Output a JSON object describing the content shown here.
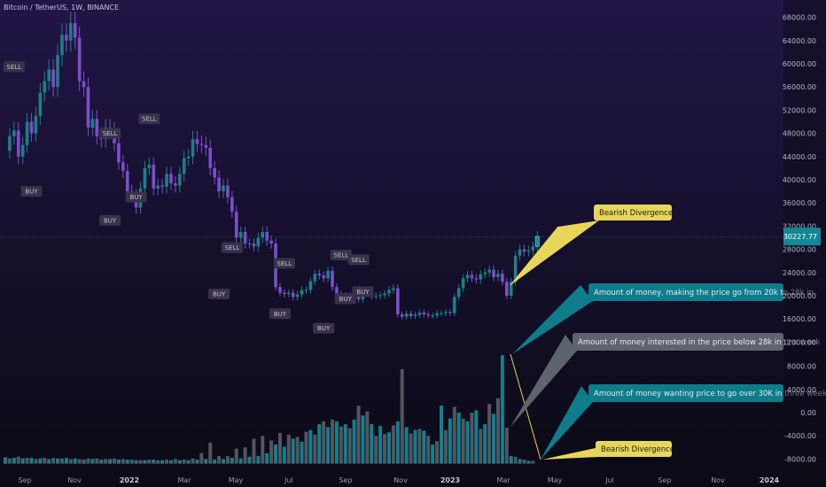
{
  "header": {
    "title": "Bitcoin / TetherUS, 1W, BINANCE"
  },
  "colors": {
    "background_top": "#1f1540",
    "background_bottom": "#0b0a14",
    "up_candle": "#1e7f86",
    "down_candle": "#7b4fc9",
    "vol_teal": "#11808f",
    "vol_gray": "#55555f",
    "callout_teal": "#0e7c8a",
    "callout_gray": "#5e646e",
    "callout_yellow": "#e8d65a",
    "signal_box": "#3a3248",
    "signal_text": "#c5c0d4"
  },
  "chart_data": {
    "type": "candlestick",
    "price_axis": {
      "ticks": [
        "68000.00",
        "64000.00",
        "60000.00",
        "56000.00",
        "52000.00",
        "48000.00",
        "44000.00",
        "40000.00",
        "36000.00",
        "32000.00",
        "28000.00",
        "24000.00",
        "20000.00",
        "16000.00",
        "12000.00"
      ],
      "last_price_label": "30227.77",
      "ylim": [
        11000,
        70000
      ]
    },
    "volume_axis": {
      "ticks": [
        "8000.00",
        "4000.00",
        "0.00",
        "-4000.00",
        "-8000.00"
      ]
    },
    "x_axis": {
      "ticks": [
        {
          "label": "Sep",
          "bold": false
        },
        {
          "label": "Nov",
          "bold": false
        },
        {
          "label": "2022",
          "bold": true
        },
        {
          "label": "Mar",
          "bold": false
        },
        {
          "label": "May",
          "bold": false
        },
        {
          "label": "Jul",
          "bold": false
        },
        {
          "label": "Sep",
          "bold": false
        },
        {
          "label": "Nov",
          "bold": false
        },
        {
          "label": "2023",
          "bold": true
        },
        {
          "label": "Mar",
          "bold": false
        },
        {
          "label": "May",
          "bold": false
        },
        {
          "label": "Jul",
          "bold": false
        },
        {
          "label": "Sep",
          "bold": false
        },
        {
          "label": "Nov",
          "bold": false
        },
        {
          "label": "2024",
          "bold": true
        }
      ]
    },
    "closes": [
      45000,
      47500,
      48500,
      44000,
      46000,
      50000,
      48000,
      51000,
      55000,
      57000,
      59000,
      56000,
      61500,
      65000,
      64000,
      67000,
      64500,
      57000,
      56000,
      49000,
      50500,
      47500,
      47000,
      49000,
      48500,
      46300,
      43000,
      41500,
      38000,
      37200,
      35200,
      38500,
      42000,
      42600,
      38500,
      39000,
      38800,
      41000,
      39400,
      39000,
      41000,
      43700,
      44000,
      47000,
      46200,
      46000,
      45500,
      42000,
      40400,
      38000,
      39000,
      37000,
      34500,
      30000,
      31000,
      29000,
      29000,
      28500,
      30000,
      31000,
      29500,
      29000,
      21500,
      20500,
      20300,
      20500,
      19800,
      20200,
      21000,
      21000,
      22500,
      23800,
      23500,
      23000,
      24300,
      21500,
      20200,
      20000,
      19500,
      20000,
      20300,
      19400,
      20600,
      20800,
      20000,
      20000,
      20100,
      20400,
      21000,
      21300,
      16800,
      16400,
      16900,
      16500,
      16700,
      17100,
      16800,
      16600,
      16600,
      17000,
      17000,
      17200,
      17000,
      19800,
      21300,
      23000,
      23600,
      23000,
      22800,
      23700,
      24000,
      24500,
      23200,
      23800,
      22400,
      20000,
      22400,
      26900,
      28000,
      27600,
      27800,
      28500,
      30200
    ],
    "volume": {
      "teal_bars": [
        {
          "i": 0,
          "v": -7700
        },
        {
          "i": 2,
          "v": -7800
        },
        {
          "i": 4,
          "v": -7900
        },
        {
          "i": 6,
          "v": -7800
        },
        {
          "i": 8,
          "v": -7900
        },
        {
          "i": 10,
          "v": -8000
        },
        {
          "i": 12,
          "v": -7900
        },
        {
          "i": 14,
          "v": -7800
        },
        {
          "i": 16,
          "v": -7900
        },
        {
          "i": 18,
          "v": -8100
        },
        {
          "i": 20,
          "v": -8000
        },
        {
          "i": 22,
          "v": -8100
        },
        {
          "i": 24,
          "v": -8000
        },
        {
          "i": 26,
          "v": -8100
        },
        {
          "i": 28,
          "v": -8100
        },
        {
          "i": 30,
          "v": -8200
        },
        {
          "i": 32,
          "v": -8200
        },
        {
          "i": 34,
          "v": -8100
        },
        {
          "i": 36,
          "v": -8200
        },
        {
          "i": 38,
          "v": -8200
        },
        {
          "i": 40,
          "v": -8200
        },
        {
          "i": 42,
          "v": -8200
        },
        {
          "i": 44,
          "v": -8100
        },
        {
          "i": 46,
          "v": -8000
        },
        {
          "i": 48,
          "v": -8100
        },
        {
          "i": 50,
          "v": -8000
        },
        {
          "i": 52,
          "v": -7800
        },
        {
          "i": 54,
          "v": -7900
        },
        {
          "i": 56,
          "v": -7600
        },
        {
          "i": 58,
          "v": -7500
        },
        {
          "i": 60,
          "v": -7000
        },
        {
          "i": 62,
          "v": -5500
        },
        {
          "i": 64,
          "v": -5900
        },
        {
          "i": 66,
          "v": -4500
        },
        {
          "i": 68,
          "v": -5000
        },
        {
          "i": 70,
          "v": -3000
        },
        {
          "i": 72,
          "v": -2000
        },
        {
          "i": 74,
          "v": -2500
        },
        {
          "i": 76,
          "v": -1500
        },
        {
          "i": 78,
          "v": -2000
        },
        {
          "i": 80,
          "v": -1200
        },
        {
          "i": 82,
          "v": -500
        },
        {
          "i": 84,
          "v": -2000
        },
        {
          "i": 86,
          "v": -2300
        },
        {
          "i": 88,
          "v": -3400
        },
        {
          "i": 90,
          "v": -1500
        },
        {
          "i": 92,
          "v": -2500
        },
        {
          "i": 94,
          "v": -3000
        },
        {
          "i": 96,
          "v": -3100
        },
        {
          "i": 98,
          "v": -5500
        },
        {
          "i": 100,
          "v": 1200
        },
        {
          "i": 102,
          "v": -1000
        },
        {
          "i": 104,
          "v": 0
        },
        {
          "i": 106,
          "v": -1500
        },
        {
          "i": 108,
          "v": 400
        },
        {
          "i": 110,
          "v": -2000
        },
        {
          "i": 112,
          "v": -200
        },
        {
          "i": 114,
          "v": 9900
        },
        {
          "i": 116,
          "v": -7500
        },
        {
          "i": 118,
          "v": -8000
        },
        {
          "i": 120,
          "v": -8300
        }
      ],
      "gray_bars": [
        {
          "i": 1,
          "v": -7900
        },
        {
          "i": 3,
          "v": -7600
        },
        {
          "i": 5,
          "v": -7800
        },
        {
          "i": 7,
          "v": -8000
        },
        {
          "i": 9,
          "v": -7800
        },
        {
          "i": 11,
          "v": -7800
        },
        {
          "i": 13,
          "v": -7900
        },
        {
          "i": 15,
          "v": -8000
        },
        {
          "i": 17,
          "v": -8000
        },
        {
          "i": 19,
          "v": -7900
        },
        {
          "i": 21,
          "v": -7900
        },
        {
          "i": 23,
          "v": -8000
        },
        {
          "i": 25,
          "v": -7900
        },
        {
          "i": 27,
          "v": -8000
        },
        {
          "i": 29,
          "v": -8100
        },
        {
          "i": 31,
          "v": -8200
        },
        {
          "i": 33,
          "v": -8100
        },
        {
          "i": 35,
          "v": -8200
        },
        {
          "i": 37,
          "v": -8100
        },
        {
          "i": 39,
          "v": -8000
        },
        {
          "i": 41,
          "v": -8100
        },
        {
          "i": 43,
          "v": -7900
        },
        {
          "i": 45,
          "v": -7000
        },
        {
          "i": 47,
          "v": -5200
        },
        {
          "i": 49,
          "v": -7500
        },
        {
          "i": 51,
          "v": -7500
        },
        {
          "i": 53,
          "v": -6200
        },
        {
          "i": 55,
          "v": -6000
        },
        {
          "i": 57,
          "v": -4500
        },
        {
          "i": 59,
          "v": -4000
        },
        {
          "i": 61,
          "v": -4800
        },
        {
          "i": 63,
          "v": -3500
        },
        {
          "i": 65,
          "v": -3800
        },
        {
          "i": 67,
          "v": -4200
        },
        {
          "i": 69,
          "v": -3300
        },
        {
          "i": 71,
          "v": -3800
        },
        {
          "i": 73,
          "v": -1500
        },
        {
          "i": 75,
          "v": -1200
        },
        {
          "i": 77,
          "v": -2400
        },
        {
          "i": 79,
          "v": -2700
        },
        {
          "i": 81,
          "v": 1200
        },
        {
          "i": 83,
          "v": 200
        },
        {
          "i": 85,
          "v": -4000
        },
        {
          "i": 87,
          "v": -3700
        },
        {
          "i": 89,
          "v": -2200
        },
        {
          "i": 91,
          "v": 7500
        },
        {
          "i": 93,
          "v": -3600
        },
        {
          "i": 95,
          "v": -2800
        },
        {
          "i": 97,
          "v": -4000
        },
        {
          "i": 99,
          "v": -4900
        },
        {
          "i": 101,
          "v": -3000
        },
        {
          "i": 103,
          "v": 1000
        },
        {
          "i": 105,
          "v": -1000
        },
        {
          "i": 107,
          "v": 0
        },
        {
          "i": 109,
          "v": -2800
        },
        {
          "i": 111,
          "v": 1500
        },
        {
          "i": 113,
          "v": 2500
        },
        {
          "i": 115,
          "v": -2600
        },
        {
          "i": 117,
          "v": -7600
        },
        {
          "i": 119,
          "v": -8100
        },
        {
          "i": 121,
          "v": -8300
        }
      ]
    },
    "signals": [
      {
        "label": "SELL",
        "i": 2,
        "price": 59500,
        "type": "sell"
      },
      {
        "label": "BUY",
        "i": 6,
        "price": 38000,
        "type": "buy"
      },
      {
        "label": "SELL",
        "i": 24,
        "price": 48000,
        "type": "sell"
      },
      {
        "label": "BUY",
        "i": 24,
        "price": 33000,
        "type": "buy"
      },
      {
        "label": "BUY",
        "i": 30,
        "price": 37000,
        "type": "buy"
      },
      {
        "label": "SELL",
        "i": 33,
        "price": 50500,
        "type": "sell"
      },
      {
        "label": "SELL",
        "i": 52,
        "price": 28300,
        "type": "sell"
      },
      {
        "label": "BUY",
        "i": 49,
        "price": 20300,
        "type": "buy"
      },
      {
        "label": "SELL",
        "i": 64,
        "price": 25600,
        "type": "sell"
      },
      {
        "label": "BUY",
        "i": 63,
        "price": 16900,
        "type": "buy"
      },
      {
        "label": "BUY",
        "i": 73,
        "price": 14400,
        "type": "buy"
      },
      {
        "label": "SELL",
        "i": 77,
        "price": 27000,
        "type": "sell"
      },
      {
        "label": "BUY",
        "i": 78,
        "price": 19500,
        "type": "buy"
      },
      {
        "label": "SELL",
        "i": 81,
        "price": 26200,
        "type": "sell"
      },
      {
        "label": "BUY",
        "i": 82,
        "price": 20700,
        "type": "buy"
      }
    ],
    "annotations": [
      {
        "id": "bearish-top",
        "text": "Bearish Divergence",
        "style": "yellow"
      },
      {
        "id": "money-20k-28k",
        "text": "Amount of money, making the price go from 20k to 28k in",
        "style": "teal"
      },
      {
        "id": "money-below-28k",
        "text": "Amount of money interested in the price below 28k in one week",
        "style": "gray"
      },
      {
        "id": "money-over-30k",
        "text": "Amount of money wanting price to go over 30K in three weeks",
        "style": "teal"
      },
      {
        "id": "bearish-bottom",
        "text": "Bearish Divergence",
        "style": "yellow"
      }
    ]
  }
}
